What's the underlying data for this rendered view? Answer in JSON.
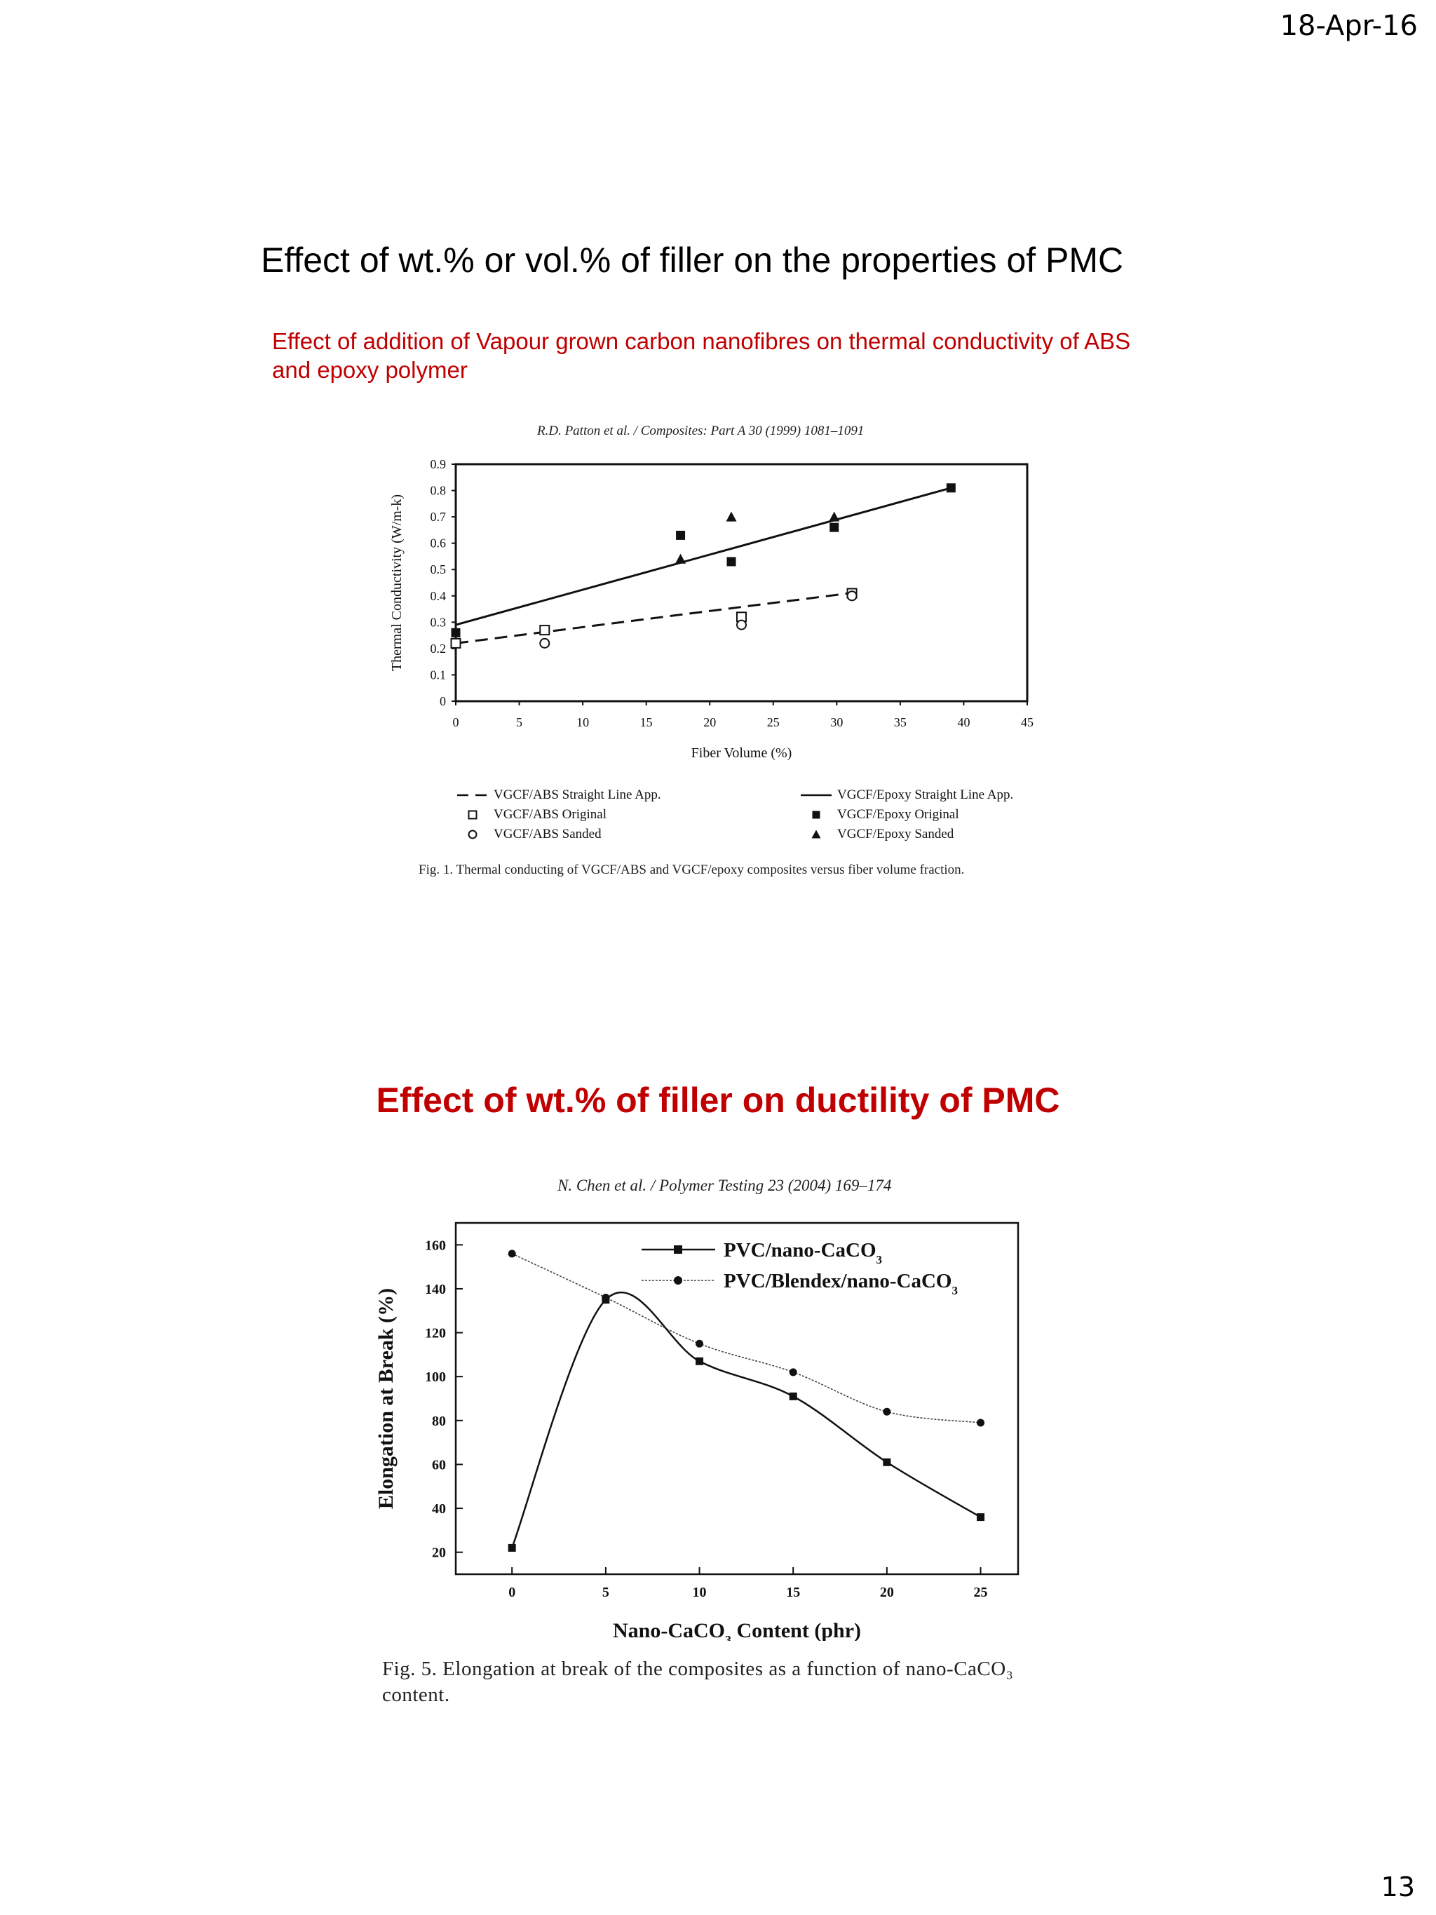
{
  "header": {
    "date": "18-Apr-16"
  },
  "footer": {
    "page_number": "13"
  },
  "slide": {
    "title": "Effect of wt.% or vol.% of filler on the properties of PMC",
    "subtitle1": "Effect of addition of Vapour grown carbon nanofibres on thermal conductivity of ABS and epoxy polymer",
    "subtitle2": "Effect of wt.% of filler on ductility of PMC"
  },
  "figure1": {
    "citation": "R.D. Patton et al. / Composites: Part A 30 (1999) 1081–1091",
    "caption": "Fig. 1.  Thermal conducting of VGCF/ABS and VGCF/epoxy composites versus fiber volume fraction."
  },
  "figure2": {
    "citation": "N. Chen et al. / Polymer Testing 23 (2004) 169–174",
    "caption": "Fig. 5.   Elongation at break of the composites as a function of nano-CaCO₃ content."
  },
  "chart_data": [
    {
      "type": "scatter",
      "xlabel": "Fiber Volume (%)",
      "ylabel": "Thermal Conductivity (W/m-k)",
      "xlim": [
        0,
        45
      ],
      "ylim": [
        0,
        0.9
      ],
      "x_ticks": [
        "0",
        "5",
        "10",
        "15",
        "20",
        "25",
        "30",
        "35",
        "40",
        "45"
      ],
      "y_ticks": [
        "0",
        "0.1",
        "0.2",
        "0.3",
        "0.4",
        "0.5",
        "0.6",
        "0.7",
        "0.8",
        "0.9"
      ],
      "legend_position": "bottom",
      "series": [
        {
          "name": "VGCF/ABS Straight Line App.",
          "kind": "line",
          "style": "dashed",
          "points": [
            [
              0,
              0.22
            ],
            [
              31,
              0.41
            ]
          ]
        },
        {
          "name": "VGCF/ABS Original",
          "marker": "open-square",
          "points": [
            [
              0,
              0.22
            ],
            [
              7,
              0.27
            ],
            [
              22.5,
              0.32
            ],
            [
              31.2,
              0.41
            ]
          ]
        },
        {
          "name": "VGCF/ABS Sanded",
          "marker": "open-circle",
          "points": [
            [
              7,
              0.22
            ],
            [
              22.5,
              0.29
            ],
            [
              31.2,
              0.4
            ]
          ]
        },
        {
          "name": "VGCF/Epoxy Straight Line App.",
          "kind": "line",
          "style": "solid",
          "points": [
            [
              0,
              0.29
            ],
            [
              39,
              0.81
            ]
          ]
        },
        {
          "name": "VGCF/Epoxy Original",
          "marker": "filled-square",
          "points": [
            [
              0,
              0.26
            ],
            [
              17.7,
              0.63
            ],
            [
              21.7,
              0.53
            ],
            [
              29.8,
              0.66
            ],
            [
              39,
              0.81
            ]
          ]
        },
        {
          "name": "VGCF/Epoxy Sanded",
          "marker": "filled-triangle",
          "points": [
            [
              17.7,
              0.54
            ],
            [
              21.7,
              0.7
            ],
            [
              29.8,
              0.7
            ]
          ]
        }
      ]
    },
    {
      "type": "line",
      "xlabel": "Nano-CaCO",
      "xlabel_sub": "3",
      "xlabel_tail": " Content (phr)",
      "ylabel": "Elongation at Break (%)",
      "xlim": [
        -3,
        27
      ],
      "ylim": [
        10,
        170
      ],
      "x_ticks": [
        "0",
        "5",
        "10",
        "15",
        "20",
        "25"
      ],
      "y_ticks": [
        "20",
        "40",
        "60",
        "80",
        "100",
        "120",
        "140",
        "160"
      ],
      "legend_position": "top-right",
      "x": [
        0,
        5,
        10,
        15,
        20,
        25
      ],
      "series": [
        {
          "name": "PVC/nano-CaCO",
          "name_sub": "3",
          "marker": "filled-square",
          "style": "solid",
          "values": [
            22,
            135,
            107,
            91,
            61,
            36
          ]
        },
        {
          "name": "PVC/Blendex/nano-CaCO",
          "name_sub": "3",
          "marker": "filled-circle",
          "style": "dotted",
          "values": [
            156,
            136,
            115,
            102,
            84,
            79
          ]
        }
      ]
    }
  ]
}
